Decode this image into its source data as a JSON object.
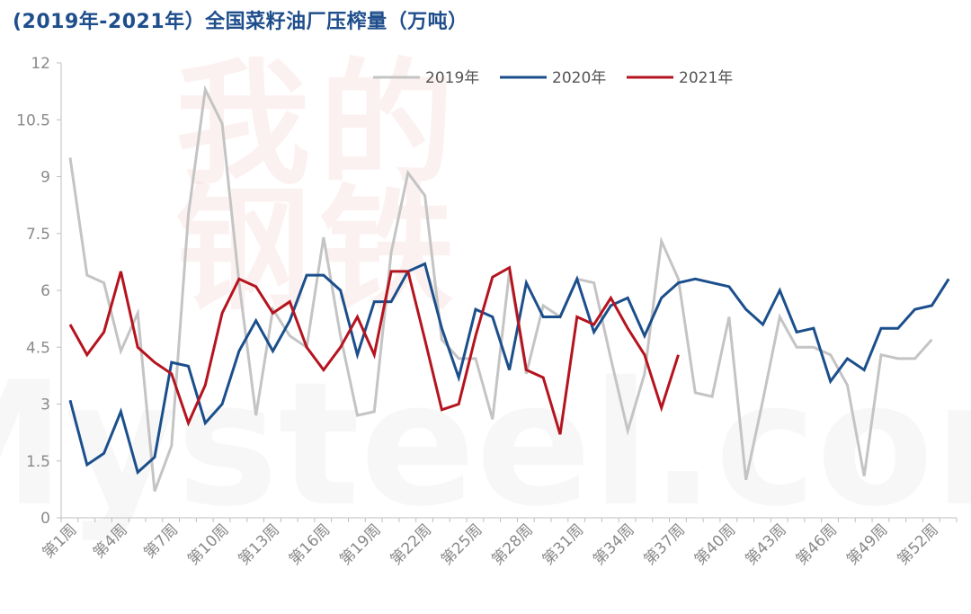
{
  "chart_data": {
    "type": "line",
    "title": "(2019年-2021年）全国菜籽油厂压榨量（万吨）",
    "xlabel": "",
    "ylabel": "",
    "ylim": [
      0,
      12
    ],
    "yticks": [
      "0",
      "1.5",
      "3",
      "4.5",
      "6",
      "7.5",
      "9",
      "10.5",
      "12"
    ],
    "ytick_values": [
      0,
      1.5,
      3,
      4.5,
      6,
      7.5,
      9,
      10.5,
      12
    ],
    "categories": [
      "第1周",
      "第2周",
      "第3周",
      "第4周",
      "第5周",
      "第6周",
      "第7周",
      "第8周",
      "第9周",
      "第10周",
      "第11周",
      "第12周",
      "第13周",
      "第14周",
      "第15周",
      "第16周",
      "第17周",
      "第18周",
      "第19周",
      "第20周",
      "第21周",
      "第22周",
      "第23周",
      "第24周",
      "第25周",
      "第26周",
      "第27周",
      "第28周",
      "第29周",
      "第30周",
      "第31周",
      "第32周",
      "第33周",
      "第34周",
      "第35周",
      "第36周",
      "第37周",
      "第38周",
      "第39周",
      "第40周",
      "第41周",
      "第42周",
      "第43周",
      "第44周",
      "第45周",
      "第46周",
      "第47周",
      "第48周",
      "第49周",
      "第50周",
      "第51周",
      "第52周",
      "第53周"
    ],
    "shown_xticks": [
      "第1周",
      "第4周",
      "第7周",
      "第10周",
      "第13周",
      "第16周",
      "第19周",
      "第22周",
      "第25周",
      "第28周",
      "第31周",
      "第34周",
      "第37周",
      "第40周",
      "第43周",
      "第46周",
      "第49周",
      "第52周"
    ],
    "legend_position": "top-center",
    "grid": false,
    "series": [
      {
        "name": "2019年",
        "color": "#c4c4c4",
        "values": [
          9.5,
          6.4,
          6.2,
          4.4,
          5.4,
          0.7,
          1.9,
          8.0,
          11.3,
          10.4,
          6.2,
          2.7,
          5.5,
          4.8,
          4.5,
          7.4,
          4.8,
          2.7,
          2.8,
          7.0,
          9.1,
          8.5,
          4.7,
          4.2,
          4.2,
          2.6,
          6.5,
          3.8,
          5.6,
          5.3,
          6.3,
          6.2,
          4.2,
          2.3,
          3.8,
          7.3,
          6.3,
          3.3,
          3.2,
          5.3,
          1.0,
          3.1,
          5.3,
          4.5,
          4.5,
          4.3,
          3.5,
          1.1,
          4.3,
          4.2,
          4.2,
          4.7,
          null
        ]
      },
      {
        "name": "2020年",
        "color": "#1b4f8c",
        "values": [
          3.1,
          1.4,
          1.7,
          2.8,
          1.2,
          1.6,
          4.1,
          4.0,
          2.5,
          3.0,
          4.4,
          5.2,
          4.4,
          5.2,
          6.4,
          6.4,
          6.0,
          4.3,
          5.7,
          5.7,
          6.5,
          6.7,
          5.0,
          3.7,
          5.5,
          5.3,
          3.9,
          6.2,
          5.3,
          5.3,
          6.3,
          4.9,
          5.6,
          5.8,
          4.8,
          5.8,
          6.2,
          6.3,
          6.2,
          6.1,
          5.5,
          5.1,
          6.0,
          4.9,
          5.0,
          3.6,
          4.2,
          3.9,
          5.0,
          5.0,
          5.5,
          5.6,
          6.3
        ]
      },
      {
        "name": "2021年",
        "color": "#b5141f",
        "values": [
          5.1,
          4.3,
          4.9,
          6.5,
          4.5,
          4.1,
          3.8,
          2.5,
          3.5,
          5.4,
          6.3,
          6.1,
          5.4,
          5.7,
          4.5,
          3.9,
          4.5,
          5.3,
          4.3,
          6.5,
          6.5,
          4.7,
          2.85,
          3.0,
          4.8,
          6.35,
          6.6,
          3.9,
          3.7,
          2.2,
          5.3,
          5.1,
          5.8,
          5.0,
          4.3,
          2.9,
          4.3,
          null,
          null,
          null,
          null,
          null,
          null,
          null,
          null,
          null,
          null,
          null,
          null,
          null,
          null,
          null,
          null
        ]
      }
    ]
  },
  "watermark": {
    "chars": [
      "我",
      "的",
      "钢",
      "铁"
    ],
    "latin": "Mysteel.com",
    "color": "#c0392b"
  }
}
